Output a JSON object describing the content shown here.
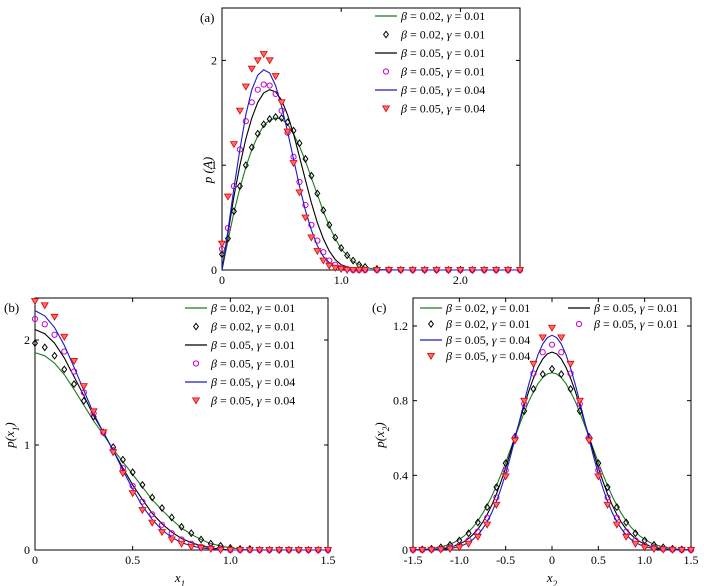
{
  "chart_data": [
    {
      "panel": "(a)",
      "type": "line",
      "xlabel": "",
      "ylabel": "p (A)",
      "xlim": [
        0,
        2.5
      ],
      "ylim": [
        0,
        2.5
      ],
      "xticks": [
        "0",
        "1.0",
        "2.0"
      ],
      "yticks": [
        "0",
        "1",
        "2"
      ],
      "legend_position": "top-right",
      "legend": [
        {
          "text": "β = 0.02, γ = 0.01",
          "kind": "line",
          "color": "#1f7a1f"
        },
        {
          "text": "β = 0.02, γ = 0.01",
          "kind": "marker",
          "marker": "diamond",
          "color": "#000000"
        },
        {
          "text": "β = 0.05, γ = 0.01",
          "kind": "line",
          "color": "#000000"
        },
        {
          "text": "β = 0.05, γ = 0.01",
          "kind": "marker",
          "marker": "circle",
          "color": "#cc00cc"
        },
        {
          "text": "β = 0.05, γ = 0.04",
          "kind": "line",
          "color": "#1a1acc"
        },
        {
          "text": "β = 0.05, γ = 0.04",
          "kind": "marker",
          "marker": "triangle-down",
          "color": "#e00000"
        }
      ],
      "series": [
        {
          "kind": "line",
          "color": "#1f7a1f",
          "x": [
            0,
            0.05,
            0.1,
            0.15,
            0.2,
            0.25,
            0.3,
            0.35,
            0.4,
            0.45,
            0.5,
            0.55,
            0.6,
            0.65,
            0.7,
            0.75,
            0.8,
            0.85,
            0.9,
            0.95,
            1.0,
            1.1,
            1.2,
            1.3,
            1.5,
            2.0,
            2.5
          ],
          "y": [
            0,
            0.28,
            0.55,
            0.78,
            0.98,
            1.15,
            1.28,
            1.38,
            1.43,
            1.45,
            1.44,
            1.39,
            1.3,
            1.18,
            1.04,
            0.88,
            0.72,
            0.56,
            0.42,
            0.3,
            0.2,
            0.08,
            0.025,
            0.006,
            0,
            0,
            0
          ]
        },
        {
          "kind": "marker",
          "marker": "diamond",
          "color": "#000000",
          "x": [
            0,
            0.05,
            0.1,
            0.15,
            0.2,
            0.25,
            0.3,
            0.35,
            0.4,
            0.45,
            0.5,
            0.55,
            0.6,
            0.65,
            0.7,
            0.75,
            0.8,
            0.85,
            0.9,
            0.95,
            1.0,
            1.05,
            1.1,
            1.15,
            1.2,
            1.3,
            1.4,
            1.5,
            1.6,
            1.7,
            1.8,
            1.9,
            2.0,
            2.1,
            2.2,
            2.3,
            2.4,
            2.5
          ],
          "y": [
            0.15,
            0.3,
            0.56,
            0.8,
            1.0,
            1.17,
            1.3,
            1.39,
            1.44,
            1.46,
            1.45,
            1.41,
            1.33,
            1.21,
            1.06,
            0.9,
            0.73,
            0.57,
            0.43,
            0.31,
            0.21,
            0.14,
            0.09,
            0.05,
            0.03,
            0.01,
            0,
            0,
            0,
            0,
            0,
            0,
            0,
            0,
            0,
            0,
            0,
            0
          ]
        },
        {
          "kind": "line",
          "color": "#000000",
          "x": [
            0,
            0.05,
            0.1,
            0.15,
            0.2,
            0.25,
            0.3,
            0.35,
            0.4,
            0.45,
            0.5,
            0.55,
            0.6,
            0.65,
            0.7,
            0.75,
            0.8,
            0.85,
            0.9,
            0.95,
            1.0,
            1.1,
            1.2,
            1.5,
            2.0,
            2.5
          ],
          "y": [
            0,
            0.35,
            0.7,
            1.0,
            1.25,
            1.45,
            1.6,
            1.69,
            1.72,
            1.7,
            1.62,
            1.48,
            1.3,
            1.08,
            0.86,
            0.64,
            0.45,
            0.3,
            0.18,
            0.1,
            0.05,
            0.01,
            0,
            0,
            0,
            0
          ]
        },
        {
          "kind": "marker",
          "marker": "circle",
          "color": "#cc00cc",
          "x": [
            0,
            0.05,
            0.1,
            0.15,
            0.2,
            0.25,
            0.3,
            0.35,
            0.4,
            0.45,
            0.5,
            0.55,
            0.6,
            0.65,
            0.7,
            0.75,
            0.8,
            0.85,
            0.9,
            0.95,
            1.0,
            1.05,
            1.1,
            1.15,
            1.2,
            1.3,
            1.4,
            1.5,
            1.6,
            1.7,
            1.8,
            1.9,
            2.0,
            2.1,
            2.2,
            2.3,
            2.4,
            2.5
          ],
          "y": [
            0.2,
            0.4,
            0.8,
            1.15,
            1.42,
            1.6,
            1.72,
            1.77,
            1.76,
            1.68,
            1.52,
            1.31,
            1.08,
            0.84,
            0.62,
            0.43,
            0.28,
            0.17,
            0.09,
            0.05,
            0.02,
            0.01,
            0,
            0,
            0,
            0,
            0,
            0,
            0,
            0,
            0,
            0,
            0,
            0,
            0,
            0,
            0,
            0
          ]
        },
        {
          "kind": "line",
          "color": "#1a1acc",
          "x": [
            0,
            0.05,
            0.1,
            0.15,
            0.2,
            0.25,
            0.3,
            0.35,
            0.4,
            0.45,
            0.5,
            0.55,
            0.6,
            0.65,
            0.7,
            0.75,
            0.8,
            0.85,
            0.9,
            0.95,
            1.0,
            1.1,
            1.2,
            1.5,
            2.0,
            2.5
          ],
          "y": [
            0,
            0.38,
            0.78,
            1.15,
            1.48,
            1.72,
            1.86,
            1.91,
            1.88,
            1.76,
            1.56,
            1.32,
            1.06,
            0.8,
            0.57,
            0.38,
            0.23,
            0.13,
            0.07,
            0.03,
            0.01,
            0,
            0,
            0,
            0,
            0
          ]
        },
        {
          "kind": "marker",
          "marker": "triangle-down",
          "color": "#e00000",
          "x": [
            0,
            0.05,
            0.1,
            0.15,
            0.2,
            0.25,
            0.3,
            0.35,
            0.4,
            0.45,
            0.5,
            0.55,
            0.6,
            0.65,
            0.7,
            0.75,
            0.8,
            0.85,
            0.9,
            0.95,
            1.0,
            1.05,
            1.1,
            1.15,
            1.2,
            1.3,
            1.4,
            1.5,
            1.6,
            1.7,
            1.8,
            1.9,
            2.0,
            2.1,
            2.2,
            2.3,
            2.4,
            2.5
          ],
          "y": [
            0.25,
            0.7,
            1.2,
            1.52,
            1.75,
            1.92,
            2.0,
            2.06,
            2.0,
            1.85,
            1.6,
            1.32,
            1.02,
            0.74,
            0.5,
            0.31,
            0.18,
            0.09,
            0.04,
            0.02,
            0.01,
            0,
            0,
            0,
            0,
            0,
            0,
            0,
            0,
            0,
            0,
            0,
            0,
            0,
            0,
            0,
            0,
            0
          ]
        }
      ]
    },
    {
      "panel": "(b)",
      "type": "line",
      "xlabel": "x1",
      "ylabel": "p(x1)",
      "xlim": [
        0,
        1.5
      ],
      "ylim": [
        0,
        2.4
      ],
      "xticks": [
        "0",
        "0.5",
        "1.0",
        "1.5"
      ],
      "yticks": [
        "0",
        "1",
        "2"
      ],
      "legend_position": "top-right",
      "legend": [
        {
          "text": "β = 0.02, γ = 0.01",
          "kind": "line",
          "color": "#1f7a1f"
        },
        {
          "text": "β = 0.02, γ = 0.01",
          "kind": "marker",
          "marker": "diamond",
          "color": "#000000"
        },
        {
          "text": "β = 0.05, γ = 0.01",
          "kind": "line",
          "color": "#000000"
        },
        {
          "text": "β = 0.05, γ = 0.01",
          "kind": "marker",
          "marker": "circle",
          "color": "#cc00cc"
        },
        {
          "text": "β = 0.05, γ = 0.04",
          "kind": "line",
          "color": "#1a1acc"
        },
        {
          "text": "β = 0.05, γ = 0.04",
          "kind": "marker",
          "marker": "triangle-down",
          "color": "#e00000"
        }
      ],
      "series": [
        {
          "kind": "line",
          "color": "#1f7a1f",
          "x": [
            0,
            0.05,
            0.1,
            0.15,
            0.2,
            0.25,
            0.3,
            0.35,
            0.4,
            0.45,
            0.5,
            0.55,
            0.6,
            0.65,
            0.7,
            0.75,
            0.8,
            0.85,
            0.9,
            0.95,
            1.0,
            1.05,
            1.1,
            1.2,
            1.3,
            1.5
          ],
          "y": [
            1.88,
            1.85,
            1.78,
            1.67,
            1.53,
            1.38,
            1.23,
            1.1,
            0.96,
            0.84,
            0.72,
            0.6,
            0.48,
            0.38,
            0.29,
            0.21,
            0.15,
            0.1,
            0.06,
            0.04,
            0.02,
            0.01,
            0,
            0,
            0,
            0
          ]
        },
        {
          "kind": "marker",
          "marker": "diamond",
          "color": "#000000",
          "x": [
            0,
            0.05,
            0.1,
            0.15,
            0.2,
            0.25,
            0.3,
            0.35,
            0.4,
            0.45,
            0.5,
            0.55,
            0.6,
            0.65,
            0.7,
            0.75,
            0.8,
            0.85,
            0.9,
            0.95,
            1.0,
            1.05,
            1.1,
            1.15,
            1.2,
            1.25,
            1.3,
            1.35,
            1.4,
            1.45,
            1.5
          ],
          "y": [
            1.97,
            1.93,
            1.85,
            1.72,
            1.58,
            1.42,
            1.27,
            1.12,
            0.98,
            0.86,
            0.74,
            0.62,
            0.5,
            0.4,
            0.31,
            0.22,
            0.16,
            0.1,
            0.06,
            0.04,
            0.02,
            0.01,
            0.01,
            0,
            0,
            0,
            0,
            0,
            0,
            0,
            0
          ]
        },
        {
          "kind": "line",
          "color": "#000000",
          "x": [
            0,
            0.05,
            0.1,
            0.15,
            0.2,
            0.25,
            0.3,
            0.35,
            0.4,
            0.45,
            0.5,
            0.55,
            0.6,
            0.65,
            0.7,
            0.75,
            0.8,
            0.85,
            0.9,
            0.95,
            1.0,
            1.1,
            1.2,
            1.5
          ],
          "y": [
            2.1,
            2.06,
            1.97,
            1.83,
            1.65,
            1.47,
            1.28,
            1.12,
            0.95,
            0.78,
            0.62,
            0.48,
            0.35,
            0.25,
            0.17,
            0.11,
            0.07,
            0.04,
            0.02,
            0.01,
            0,
            0,
            0,
            0
          ]
        },
        {
          "kind": "marker",
          "marker": "circle",
          "color": "#cc00cc",
          "x": [
            0,
            0.05,
            0.1,
            0.15,
            0.2,
            0.25,
            0.3,
            0.35,
            0.4,
            0.45,
            0.5,
            0.55,
            0.6,
            0.65,
            0.7,
            0.75,
            0.8,
            0.85,
            0.9,
            0.95,
            1.0,
            1.05,
            1.1,
            1.15,
            1.2,
            1.25,
            1.3,
            1.35,
            1.4,
            1.45,
            1.5
          ],
          "y": [
            2.2,
            2.15,
            2.05,
            1.89,
            1.7,
            1.5,
            1.3,
            1.12,
            0.95,
            0.78,
            0.61,
            0.46,
            0.34,
            0.24,
            0.16,
            0.1,
            0.06,
            0.03,
            0.02,
            0.01,
            0,
            0,
            0,
            0,
            0,
            0,
            0,
            0,
            0,
            0,
            0
          ]
        },
        {
          "kind": "line",
          "color": "#1a1acc",
          "x": [
            0,
            0.05,
            0.1,
            0.15,
            0.2,
            0.25,
            0.3,
            0.35,
            0.4,
            0.45,
            0.5,
            0.55,
            0.6,
            0.65,
            0.7,
            0.75,
            0.8,
            0.85,
            0.9,
            0.95,
            1.0,
            1.1,
            1.2,
            1.5
          ],
          "y": [
            2.28,
            2.23,
            2.12,
            1.95,
            1.74,
            1.52,
            1.3,
            1.12,
            0.95,
            0.76,
            0.58,
            0.42,
            0.29,
            0.19,
            0.12,
            0.07,
            0.04,
            0.02,
            0.01,
            0,
            0,
            0,
            0,
            0
          ]
        },
        {
          "kind": "marker",
          "marker": "triangle-down",
          "color": "#e00000",
          "x": [
            0,
            0.05,
            0.1,
            0.15,
            0.2,
            0.25,
            0.3,
            0.35,
            0.4,
            0.45,
            0.5,
            0.55,
            0.6,
            0.65,
            0.7,
            0.75,
            0.8,
            0.85,
            0.9,
            0.95,
            1.0,
            1.05,
            1.1,
            1.15,
            1.2,
            1.25,
            1.3,
            1.35,
            1.4,
            1.45,
            1.5
          ],
          "y": [
            2.37,
            2.33,
            2.22,
            2.03,
            1.8,
            1.56,
            1.32,
            1.12,
            0.93,
            0.73,
            0.54,
            0.38,
            0.26,
            0.17,
            0.1,
            0.06,
            0.03,
            0.02,
            0.01,
            0,
            0,
            0,
            0,
            0,
            0,
            0,
            0,
            0,
            0,
            0,
            0
          ]
        }
      ]
    },
    {
      "panel": "(c)",
      "type": "line",
      "xlabel": "x2",
      "ylabel": "p(x2)",
      "xlim": [
        -1.5,
        1.5
      ],
      "ylim": [
        0,
        1.35
      ],
      "xticks": [
        "-1.5",
        "-1.0",
        "-0.5",
        "0",
        "0.5",
        "1.0",
        "1.5"
      ],
      "yticks": [
        "0",
        "0.4",
        "0.8",
        "1.2"
      ],
      "legend_position": "top",
      "legend": [
        {
          "text": "β = 0.02, γ = 0.01",
          "kind": "line",
          "color": "#1f7a1f"
        },
        {
          "text": "β = 0.02, γ = 0.01",
          "kind": "marker",
          "marker": "diamond",
          "color": "#000000"
        },
        {
          "text": "β = 0.05, γ = 0.01",
          "kind": "line",
          "color": "#000000"
        },
        {
          "text": "β = 0.05, γ = 0.01",
          "kind": "marker",
          "marker": "circle",
          "color": "#cc00cc"
        },
        {
          "text": "β = 0.05, γ = 0.04",
          "kind": "line",
          "color": "#1a1acc"
        },
        {
          "text": "β = 0.05, γ = 0.04",
          "kind": "marker",
          "marker": "triangle-down",
          "color": "#e00000"
        }
      ],
      "series": [
        {
          "kind": "gaussian-line",
          "color": "#1f7a1f",
          "peak": 0.95
        },
        {
          "kind": "gaussian-marker",
          "marker": "diamond",
          "color": "#000000",
          "peak": 0.97
        },
        {
          "kind": "gaussian-line",
          "color": "#000000",
          "peak": 1.06
        },
        {
          "kind": "gaussian-marker",
          "marker": "circle",
          "color": "#cc00cc",
          "peak": 1.1
        },
        {
          "kind": "gaussian-line",
          "color": "#1a1acc",
          "peak": 1.15
        },
        {
          "kind": "gaussian-marker",
          "marker": "triangle-down",
          "color": "#e00000",
          "peak": 1.19
        }
      ]
    }
  ]
}
